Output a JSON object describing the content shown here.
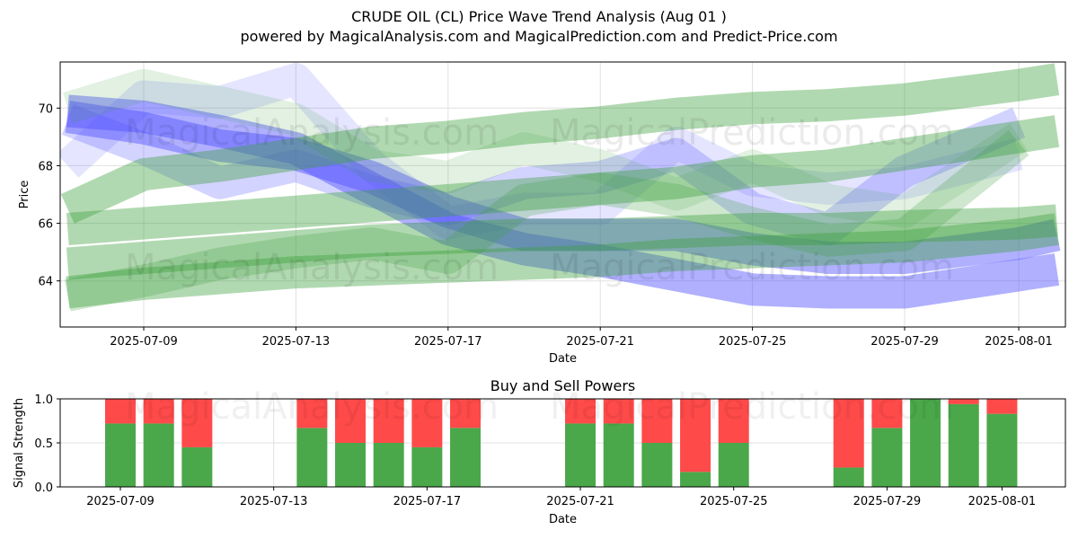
{
  "figure": {
    "title": "CRUDE OIL (CL) Price Wave Trend Analysis (Aug 01 )",
    "subtitle": "powered by MagicalAnalysis.com and MagicalPrediction.com and Predict-Price.com",
    "watermarks": [
      "MagicalAnalysis.com",
      "MagicalPrediction.com"
    ]
  },
  "chart_data": [
    {
      "type": "area",
      "title": "",
      "xlabel": "Date",
      "ylabel": "Price",
      "x_ticks": [
        "2025-07-09",
        "2025-07-13",
        "2025-07-17",
        "2025-07-21",
        "2025-07-25",
        "2025-07-29",
        "2025-08-01"
      ],
      "y_ticks": [
        64,
        66,
        68,
        70
      ],
      "ylim": [
        62.4,
        71.6
      ],
      "grid": true,
      "series": [
        {
          "color": "#5050ff",
          "opacity": 0.45,
          "values": [
            [
              "2025-07-07",
              69.7
            ],
            [
              "2025-07-09",
              69.3
            ],
            [
              "2025-07-11",
              68.7
            ],
            [
              "2025-07-13",
              68.4
            ],
            [
              "2025-07-15",
              67.6
            ],
            [
              "2025-07-17",
              66.4
            ],
            [
              "2025-07-19",
              65.6
            ],
            [
              "2025-07-21",
              65.6
            ],
            [
              "2025-07-23",
              65.6
            ],
            [
              "2025-07-25",
              65.1
            ],
            [
              "2025-07-27",
              64.8
            ],
            [
              "2025-07-29",
              64.8
            ],
            [
              "2025-08-01",
              65.3
            ],
            [
              "2025-08-02",
              65.6
            ]
          ]
        },
        {
          "color": "#5050ff",
          "opacity": 0.45,
          "values": [
            [
              "2025-07-07",
              69.9
            ],
            [
              "2025-07-09",
              69.7
            ],
            [
              "2025-07-11",
              69.2
            ],
            [
              "2025-07-13",
              68.6
            ],
            [
              "2025-07-15",
              67.2
            ],
            [
              "2025-07-17",
              65.8
            ],
            [
              "2025-07-19",
              65.1
            ],
            [
              "2025-07-21",
              64.7
            ],
            [
              "2025-07-23",
              64.2
            ],
            [
              "2025-07-25",
              63.7
            ],
            [
              "2025-07-27",
              63.6
            ],
            [
              "2025-07-29",
              63.6
            ],
            [
              "2025-08-01",
              64.2
            ],
            [
              "2025-08-02",
              64.4
            ]
          ]
        },
        {
          "color": "#5050ff",
          "opacity": 0.25,
          "values": [
            [
              "2025-07-07",
              69.6
            ],
            [
              "2025-07-09",
              68.6
            ],
            [
              "2025-07-11",
              67.4
            ],
            [
              "2025-07-13",
              68.0
            ],
            [
              "2025-07-15",
              67.1
            ],
            [
              "2025-07-17",
              66.5
            ],
            [
              "2025-07-19",
              67.4
            ],
            [
              "2025-07-21",
              67.6
            ],
            [
              "2025-07-23",
              68.4
            ],
            [
              "2025-07-25",
              66.5
            ],
            [
              "2025-07-27",
              65.8
            ],
            [
              "2025-07-29",
              67.8
            ],
            [
              "2025-08-01",
              69.5
            ]
          ]
        },
        {
          "color": "#5050ff",
          "opacity": 0.15,
          "values": [
            [
              "2025-07-07",
              68.0
            ],
            [
              "2025-07-09",
              70.4
            ],
            [
              "2025-07-11",
              70.2
            ],
            [
              "2025-07-13",
              71.0
            ],
            [
              "2025-07-15",
              68.0
            ],
            [
              "2025-07-17",
              66.0
            ],
            [
              "2025-07-19",
              66.5
            ],
            [
              "2025-07-21",
              66.5
            ],
            [
              "2025-07-23",
              68.8
            ],
            [
              "2025-07-25",
              67.5
            ],
            [
              "2025-07-27",
              67.2
            ],
            [
              "2025-07-29",
              67.4
            ],
            [
              "2025-08-01",
              68.4
            ]
          ]
        },
        {
          "color": "#3ca03c",
          "opacity": 0.4,
          "values": [
            [
              "2025-07-07",
              66.5
            ],
            [
              "2025-07-09",
              67.7
            ],
            [
              "2025-07-11",
              68.0
            ],
            [
              "2025-07-13",
              68.4
            ],
            [
              "2025-07-15",
              68.8
            ],
            [
              "2025-07-17",
              69.0
            ],
            [
              "2025-07-19",
              69.3
            ],
            [
              "2025-07-21",
              69.5
            ],
            [
              "2025-07-23",
              69.8
            ],
            [
              "2025-07-25",
              70.0
            ],
            [
              "2025-07-27",
              70.1
            ],
            [
              "2025-07-29",
              70.3
            ],
            [
              "2025-08-01",
              70.8
            ],
            [
              "2025-08-02",
              71.0
            ]
          ]
        },
        {
          "color": "#3ca03c",
          "opacity": 0.4,
          "values": [
            [
              "2025-07-07",
              65.8
            ],
            [
              "2025-07-09",
              66.0
            ],
            [
              "2025-07-11",
              66.2
            ],
            [
              "2025-07-13",
              66.4
            ],
            [
              "2025-07-15",
              66.6
            ],
            [
              "2025-07-17",
              66.8
            ],
            [
              "2025-07-19",
              67.0
            ],
            [
              "2025-07-21",
              67.2
            ],
            [
              "2025-07-23",
              67.4
            ],
            [
              "2025-07-25",
              67.8
            ],
            [
              "2025-07-27",
              68.0
            ],
            [
              "2025-07-29",
              68.4
            ],
            [
              "2025-08-01",
              69.0
            ],
            [
              "2025-08-02",
              69.2
            ]
          ]
        },
        {
          "color": "#3ca03c",
          "opacity": 0.4,
          "values": [
            [
              "2025-07-07",
              64.6
            ],
            [
              "2025-07-09",
              64.8
            ],
            [
              "2025-07-11",
              65.0
            ],
            [
              "2025-07-13",
              65.2
            ],
            [
              "2025-07-15",
              65.4
            ],
            [
              "2025-07-17",
              65.5
            ],
            [
              "2025-07-19",
              65.6
            ],
            [
              "2025-07-21",
              65.6
            ],
            [
              "2025-07-23",
              65.7
            ],
            [
              "2025-07-25",
              65.8
            ],
            [
              "2025-07-27",
              65.8
            ],
            [
              "2025-07-29",
              65.9
            ],
            [
              "2025-08-01",
              66.0
            ],
            [
              "2025-08-02",
              66.1
            ]
          ]
        },
        {
          "color": "#3ca03c",
          "opacity": 0.4,
          "values": [
            [
              "2025-07-07",
              63.6
            ],
            [
              "2025-07-09",
              63.9
            ],
            [
              "2025-07-11",
              64.1
            ],
            [
              "2025-07-13",
              64.3
            ],
            [
              "2025-07-15",
              64.4
            ],
            [
              "2025-07-17",
              64.5
            ],
            [
              "2025-07-19",
              64.6
            ],
            [
              "2025-07-21",
              64.7
            ],
            [
              "2025-07-23",
              64.9
            ],
            [
              "2025-07-25",
              65.0
            ],
            [
              "2025-07-27",
              65.1
            ],
            [
              "2025-07-29",
              65.2
            ],
            [
              "2025-08-01",
              65.6
            ],
            [
              "2025-08-02",
              65.8
            ]
          ]
        },
        {
          "color": "#3ca03c",
          "opacity": 0.25,
          "values": [
            [
              "2025-07-07",
              63.5
            ],
            [
              "2025-07-09",
              64.0
            ],
            [
              "2025-07-11",
              64.6
            ],
            [
              "2025-07-13",
              65.0
            ],
            [
              "2025-07-15",
              65.3
            ],
            [
              "2025-07-17",
              64.8
            ],
            [
              "2025-07-19",
              66.8
            ],
            [
              "2025-07-21",
              67.2
            ],
            [
              "2025-07-23",
              66.8
            ],
            [
              "2025-07-25",
              66.0
            ],
            [
              "2025-07-27",
              65.4
            ],
            [
              "2025-07-29",
              65.6
            ],
            [
              "2025-08-01",
              68.8
            ]
          ]
        },
        {
          "color": "#3ca03c",
          "opacity": 0.15,
          "values": [
            [
              "2025-07-07",
              70.0
            ],
            [
              "2025-07-09",
              70.8
            ],
            [
              "2025-07-11",
              70.2
            ],
            [
              "2025-07-13",
              69.6
            ],
            [
              "2025-07-15",
              68.0
            ],
            [
              "2025-07-17",
              67.6
            ],
            [
              "2025-07-19",
              68.6
            ],
            [
              "2025-07-21",
              68.0
            ],
            [
              "2025-07-23",
              67.0
            ],
            [
              "2025-07-25",
              68.0
            ],
            [
              "2025-07-27",
              66.8
            ],
            [
              "2025-07-29",
              66.4
            ],
            [
              "2025-08-01",
              69.0
            ]
          ]
        }
      ]
    },
    {
      "type": "bar",
      "title": "Buy and Sell Powers",
      "xlabel": "Date",
      "ylabel": "Signal Strength",
      "x_ticks": [
        "2025-07-09",
        "2025-07-13",
        "2025-07-17",
        "2025-07-21",
        "2025-07-25",
        "2025-07-29",
        "2025-08-01"
      ],
      "y_ticks": [
        "0.0",
        "0.5",
        "1.0"
      ],
      "ylim": [
        0,
        1
      ],
      "grid": true,
      "buy_color": "#4aa84a",
      "sell_color": "#ff4a4a",
      "series": [
        {
          "name": "buy",
          "values": [
            [
              "2025-07-09",
              0.72
            ],
            [
              "2025-07-10",
              0.72
            ],
            [
              "2025-07-11",
              0.45
            ],
            [
              "2025-07-14",
              0.67
            ],
            [
              "2025-07-15",
              0.5
            ],
            [
              "2025-07-16",
              0.5
            ],
            [
              "2025-07-17",
              0.45
            ],
            [
              "2025-07-18",
              0.67
            ],
            [
              "2025-07-21",
              0.72
            ],
            [
              "2025-07-22",
              0.72
            ],
            [
              "2025-07-23",
              0.5
            ],
            [
              "2025-07-24",
              0.17
            ],
            [
              "2025-07-25",
              0.5
            ],
            [
              "2025-07-28",
              0.22
            ],
            [
              "2025-07-29",
              0.67
            ],
            [
              "2025-07-30",
              1.0
            ],
            [
              "2025-07-31",
              0.94
            ],
            [
              "2025-08-01",
              0.83
            ]
          ]
        },
        {
          "name": "sell",
          "values": [
            [
              "2025-07-09",
              0.28
            ],
            [
              "2025-07-10",
              0.28
            ],
            [
              "2025-07-11",
              0.55
            ],
            [
              "2025-07-14",
              0.33
            ],
            [
              "2025-07-15",
              0.5
            ],
            [
              "2025-07-16",
              0.5
            ],
            [
              "2025-07-17",
              0.55
            ],
            [
              "2025-07-18",
              0.33
            ],
            [
              "2025-07-21",
              0.28
            ],
            [
              "2025-07-22",
              0.28
            ],
            [
              "2025-07-23",
              0.5
            ],
            [
              "2025-07-24",
              0.83
            ],
            [
              "2025-07-25",
              0.5
            ],
            [
              "2025-07-28",
              0.78
            ],
            [
              "2025-07-29",
              0.33
            ],
            [
              "2025-07-30",
              0.0
            ],
            [
              "2025-07-31",
              0.06
            ],
            [
              "2025-08-01",
              0.17
            ]
          ]
        }
      ]
    }
  ]
}
